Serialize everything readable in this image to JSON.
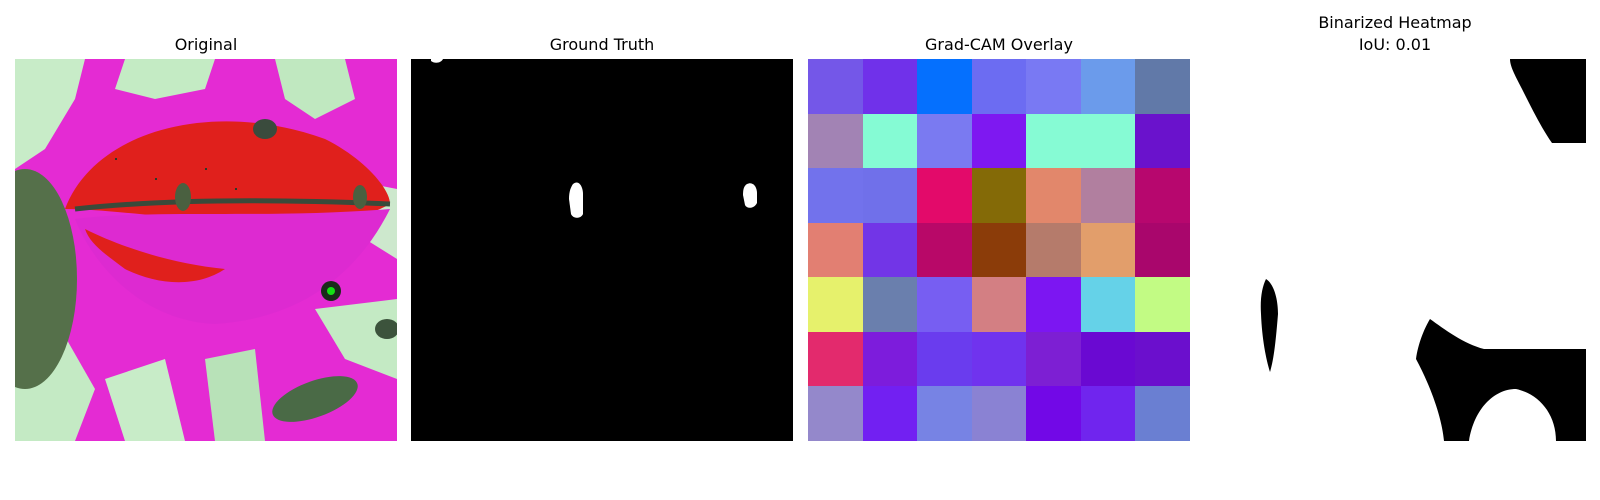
{
  "panels": {
    "original": {
      "title": "Original"
    },
    "ground_truth": {
      "title": "Ground Truth"
    },
    "gradcam": {
      "title": "Grad-CAM Overlay",
      "grid_colors": [
        [
          "#7457e8",
          "#7031ea",
          "#0570fe",
          "#6c6cf2",
          "#7979f3",
          "#6b9beb",
          "#6179a8"
        ],
        [
          "#a283b4",
          "#85fbd4",
          "#7a7af1",
          "#7e18f1",
          "#86fbd4",
          "#86fbd4",
          "#6a12cc"
        ],
        [
          "#7272ec",
          "#7070ea",
          "#e30a6a",
          "#846a07",
          "#e2876b",
          "#b17f9f",
          "#b7076e"
        ],
        [
          "#e27f72",
          "#7235e7",
          "#b80868",
          "#8b3c09",
          "#b57b6b",
          "#e29e6b",
          "#a9066c"
        ],
        [
          "#e6f16c",
          "#6a7fad",
          "#775ef2",
          "#d37f83",
          "#7c16f2",
          "#65d2e8",
          "#c2fb84"
        ],
        [
          "#e32a6d",
          "#7d1cdc",
          "#6a3cee",
          "#7033ee",
          "#7d1fd3",
          "#6a09d2",
          "#6b0fcd"
        ],
        [
          "#9488cb",
          "#7220f2",
          "#7783e4",
          "#8a82d3",
          "#7208e7",
          "#7025ee",
          "#6a7fd2"
        ]
      ]
    },
    "binarized": {
      "title_line1": "Binarized Heatmap",
      "title_line2": "IoU: 0.01"
    }
  }
}
